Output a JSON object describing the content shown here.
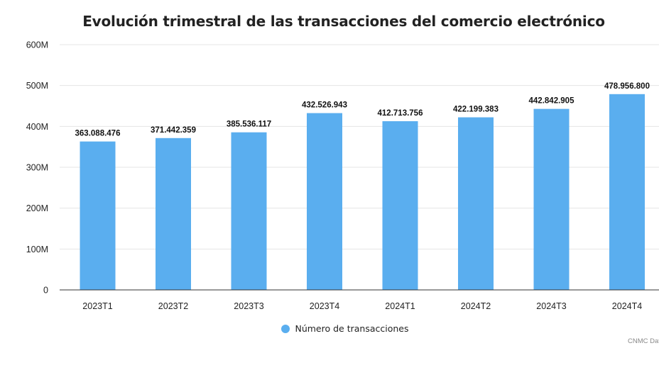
{
  "chart_data": {
    "type": "bar",
    "title": "Evolución trimestral de las transacciones del comercio electrónico",
    "categories": [
      "2023T1",
      "2023T2",
      "2023T3",
      "2023T4",
      "2024T1",
      "2024T2",
      "2024T3",
      "2024T4"
    ],
    "series": [
      {
        "name": "Número de transacciones",
        "values": [
          363088476,
          371442359,
          385536117,
          432526943,
          412713756,
          422199383,
          442842905,
          478956800
        ],
        "labels": [
          "363.088.476",
          "371.442.359",
          "385.536.117",
          "432.526.943",
          "412.713.756",
          "422.199.383",
          "442.842.905",
          "478.956.800"
        ],
        "color": "#5aaeef"
      }
    ],
    "ylim": [
      0,
      600000000
    ],
    "yticks": [
      0,
      100000000,
      200000000,
      300000000,
      400000000,
      500000000,
      600000000
    ],
    "ytick_labels": [
      "0",
      "100M",
      "200M",
      "300M",
      "400M",
      "500M",
      "600M"
    ],
    "xlabel": "",
    "ylabel": "",
    "grid": true,
    "legend_position": "bottom-center"
  },
  "source_note": "CNMC Dat"
}
